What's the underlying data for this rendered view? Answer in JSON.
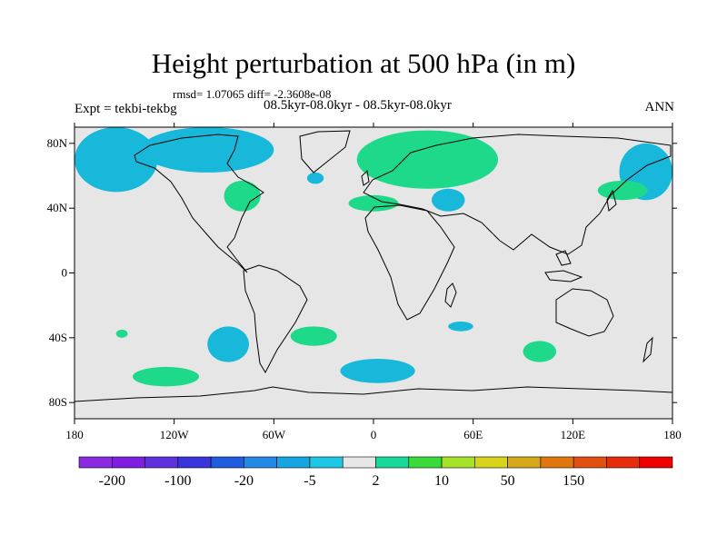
{
  "title": "Height perturbation at 500 hPa (in m)",
  "stats": "rmsd= 1.07065  diff= -2.3608e-08",
  "subtitle": "08.5kyr-08.0kyr - 08.5kyr-08.0kyr",
  "experiment": "Expt = tekbi-tekbg",
  "season": "ANN",
  "map": {
    "lon_ticks": [
      {
        "lon": -180,
        "label": "180"
      },
      {
        "lon": -120,
        "label": "120W"
      },
      {
        "lon": -60,
        "label": "60W"
      },
      {
        "lon": 0,
        "label": "0"
      },
      {
        "lon": 60,
        "label": "60E"
      },
      {
        "lon": 120,
        "label": "120E"
      },
      {
        "lon": 180,
        "label": "180"
      }
    ],
    "lat_ticks": [
      {
        "lat": 80,
        "label": "80N"
      },
      {
        "lat": 40,
        "label": "40N"
      },
      {
        "lat": 0,
        "label": "0"
      },
      {
        "lat": -40,
        "label": "40S"
      },
      {
        "lat": -80,
        "label": "80S"
      }
    ],
    "colors": {
      "background": "#e6e6e6",
      "negative": "#18b8da",
      "positive": "#1ed98a"
    },
    "anomaly_regions": [
      {
        "sign": "negative",
        "lon": [
          -180,
          -130
        ],
        "lat": [
          50,
          90
        ]
      },
      {
        "sign": "negative",
        "lon": [
          -140,
          -60
        ],
        "lat": [
          62,
          90
        ]
      },
      {
        "sign": "negative",
        "lon": [
          -40,
          -30
        ],
        "lat": [
          55,
          62
        ]
      },
      {
        "sign": "negative",
        "lon": [
          35,
          55
        ],
        "lat": [
          38,
          52
        ]
      },
      {
        "sign": "negative",
        "lon": [
          148,
          180
        ],
        "lat": [
          45,
          80
        ]
      },
      {
        "sign": "negative",
        "lon": [
          -100,
          -75
        ],
        "lat": [
          -55,
          -33
        ]
      },
      {
        "sign": "negative",
        "lon": [
          45,
          60
        ],
        "lat": [
          -36,
          -30
        ]
      },
      {
        "sign": "negative",
        "lon": [
          -20,
          25
        ],
        "lat": [
          -68,
          -53
        ]
      },
      {
        "sign": "positive",
        "lon": [
          -90,
          -68
        ],
        "lat": [
          38,
          57
        ]
      },
      {
        "sign": "positive",
        "lon": [
          -15,
          15
        ],
        "lat": [
          38,
          48
        ]
      },
      {
        "sign": "positive",
        "lon": [
          -10,
          75
        ],
        "lat": [
          52,
          88
        ]
      },
      {
        "sign": "positive",
        "lon": [
          135,
          165
        ],
        "lat": [
          45,
          57
        ]
      },
      {
        "sign": "positive",
        "lon": [
          -50,
          -22
        ],
        "lat": [
          -45,
          -33
        ]
      },
      {
        "sign": "positive",
        "lon": [
          90,
          110
        ],
        "lat": [
          -55,
          -42
        ]
      },
      {
        "sign": "positive",
        "lon": [
          -145,
          -105
        ],
        "lat": [
          -70,
          -58
        ]
      },
      {
        "sign": "positive",
        "lon": [
          -155,
          -148
        ],
        "lat": [
          -40,
          -35
        ]
      }
    ]
  },
  "colorbar": {
    "colors": [
      "#8a2be2",
      "#7f1ee0",
      "#5f30df",
      "#3a34dc",
      "#1f5ce0",
      "#2289e6",
      "#15a6e2",
      "#1cc8e4",
      "#e6e6e6",
      "#18d99a",
      "#38dc3a",
      "#a6e227",
      "#d8d41c",
      "#d4a817",
      "#e0770e",
      "#e25010",
      "#e62c0a",
      "#ee0000"
    ],
    "labels": [
      "-200",
      "-100",
      "-20",
      "-5",
      "2",
      "10",
      "50",
      "150"
    ]
  }
}
